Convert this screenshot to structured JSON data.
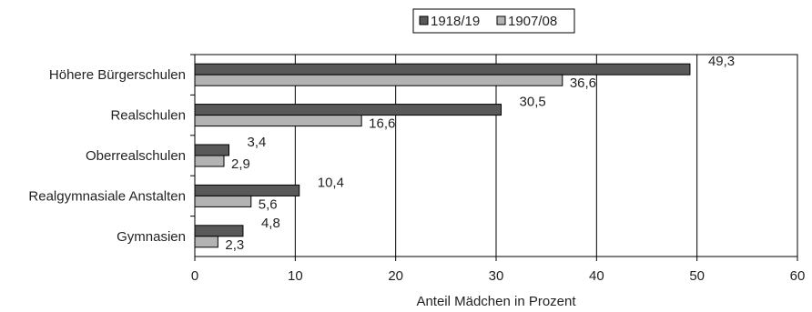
{
  "chart_data": {
    "type": "bar",
    "orientation": "horizontal",
    "title": "",
    "xlabel": "Anteil Mädchen in Prozent",
    "ylabel": "",
    "xlim": [
      0,
      60
    ],
    "xticks": [
      0,
      10,
      20,
      30,
      40,
      50,
      60
    ],
    "grid": true,
    "legend_position": "top-right",
    "categories": [
      "Höhere Bürgerschulen",
      "Realschulen",
      "Oberrealschulen",
      "Realgymnasiale Anstalten",
      "Gymnasien"
    ],
    "series": [
      {
        "name": "1918/19",
        "color": "#595959",
        "values": [
          49.3,
          30.5,
          3.4,
          10.4,
          4.8
        ],
        "labels": [
          "49,3",
          "30,5",
          "3,4",
          "10,4",
          "4,8"
        ]
      },
      {
        "name": "1907/08",
        "color": "#b3b3b3",
        "values": [
          36.6,
          16.6,
          2.9,
          5.6,
          2.3
        ],
        "labels": [
          "36,6",
          "16,6",
          "2,9",
          "5,6",
          "2,3"
        ]
      }
    ]
  }
}
